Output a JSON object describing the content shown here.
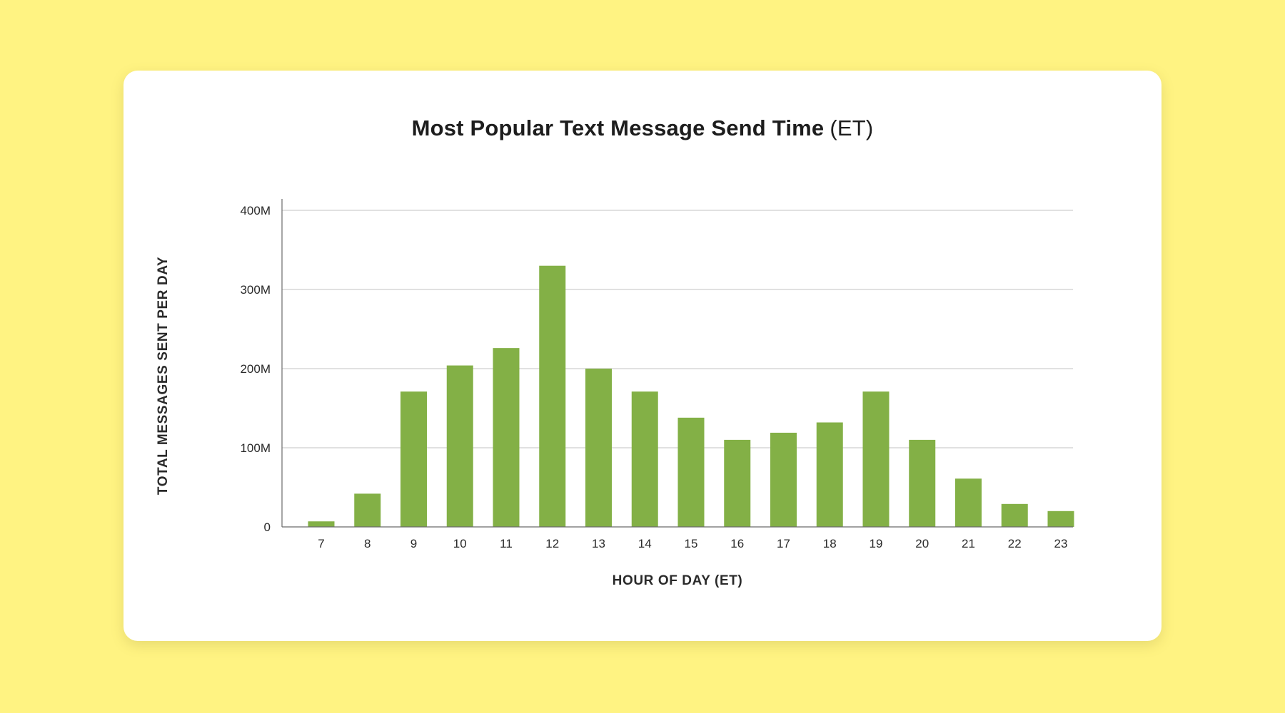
{
  "chart_data": {
    "type": "bar",
    "title": "Most Popular Text Message Send Time",
    "title_suffix": "(ET)",
    "xlabel": "HOUR OF DAY (ET)",
    "ylabel": "TOTAL MESSAGES SENT PER DAY",
    "categories": [
      "7",
      "8",
      "9",
      "10",
      "11",
      "12",
      "13",
      "14",
      "15",
      "16",
      "17",
      "18",
      "19",
      "20",
      "21",
      "22",
      "23"
    ],
    "values": [
      7,
      42,
      171,
      204,
      226,
      330,
      200,
      171,
      138,
      110,
      119,
      132,
      171,
      110,
      61,
      29,
      20
    ],
    "ylim": [
      0,
      400
    ],
    "yticks": [
      0,
      100,
      200,
      300,
      400
    ],
    "ytick_labels": [
      "0",
      "100M",
      "200M",
      "300M",
      "400M"
    ],
    "grid": true,
    "legend": "none",
    "bar_color": "#83b046"
  }
}
